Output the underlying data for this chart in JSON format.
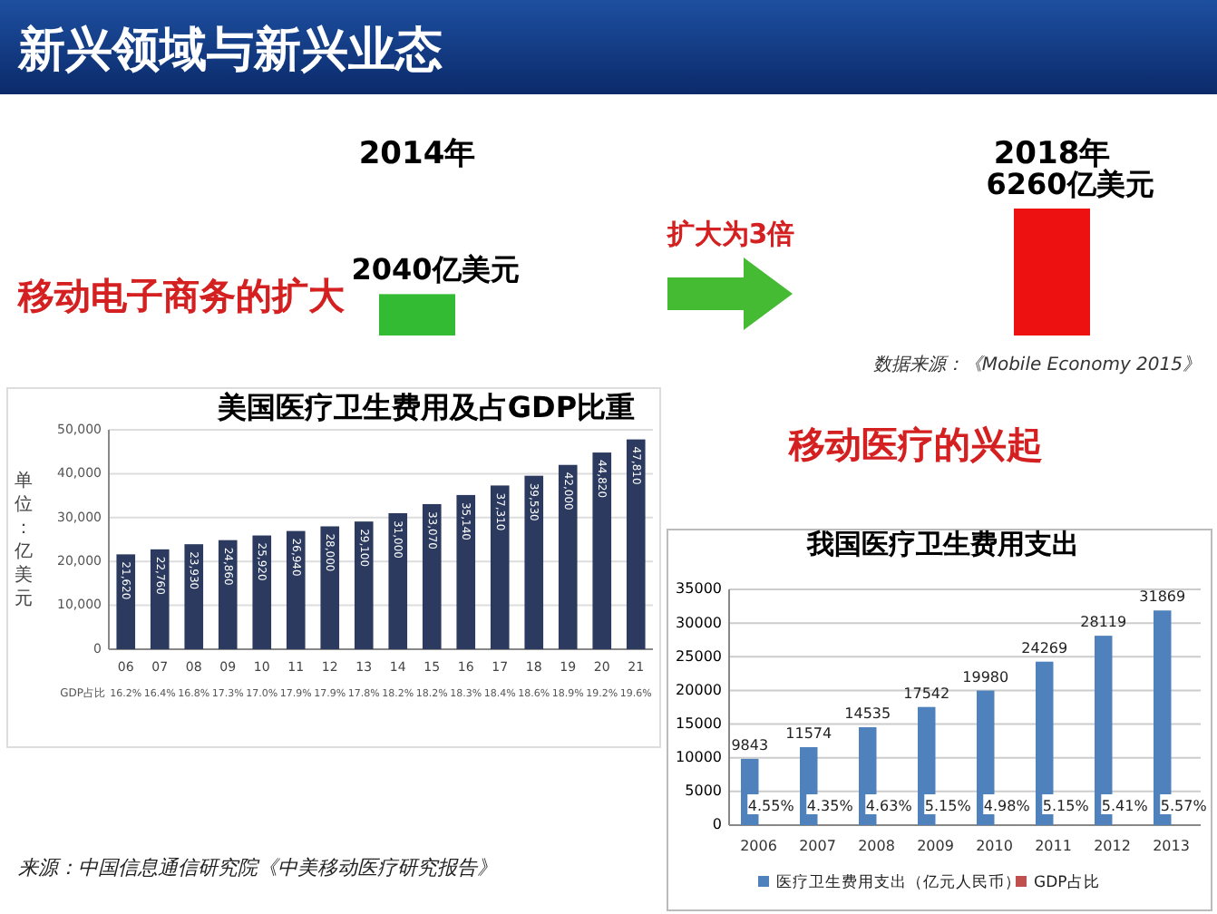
{
  "chart_data": [
    {
      "type": "other",
      "title": "新兴领域与新兴业态"
    },
    {
      "type": "bar",
      "title": "移动电子商务的扩大",
      "categories": [
        "2014年",
        "2018年"
      ],
      "values": [
        2040,
        6260
      ],
      "colors": [
        "#33bb33",
        "#ee1111"
      ],
      "value_labels": [
        "2040亿美元",
        "6260亿美元"
      ],
      "annotations": [
        "扩大为3倍",
        "数据来源：《Mobile Economy 2015》"
      ]
    },
    {
      "type": "bar",
      "title": "美国医疗卫生费用及占GDP比重",
      "ylabel": "单位：亿美元",
      "categories": [
        "06",
        "07",
        "08",
        "09",
        "10",
        "11",
        "12",
        "13",
        "14",
        "15",
        "16",
        "17",
        "18",
        "19",
        "20",
        "21"
      ],
      "ylim": [
        0,
        50000
      ],
      "yticks": [
        {
          "value": 0,
          "label": "0"
        },
        {
          "value": 10000,
          "label": "10,000"
        },
        {
          "value": 20000,
          "label": "20,000"
        },
        {
          "value": 30000,
          "label": "30,000"
        },
        {
          "value": 40000,
          "label": "40,000"
        },
        {
          "value": 50000,
          "label": "50,000"
        }
      ],
      "grid": "y",
      "color": "#2b3a5e",
      "values": [
        21620,
        22760,
        23930,
        24860,
        25920,
        26940,
        28000,
        29100,
        31000,
        33070,
        35140,
        37310,
        39530,
        42000,
        44820,
        47810
      ],
      "value_labels": [
        "21,620",
        "22,760",
        "23,930",
        "24,860",
        "25,920",
        "26,940",
        "28,000",
        "29,100",
        "31,000",
        "33,070",
        "35,140",
        "37,310",
        "39,530",
        "42,000",
        "44,820",
        "47,810"
      ],
      "annotations": [
        "GDP占比",
        "16.2%",
        "16.4%",
        "16.8%",
        "17.3%",
        "17.0%",
        "17.9%",
        "17.9%",
        "17.8%",
        "18.2%",
        "18.2%",
        "18.3%",
        "18.4%",
        "18.6%",
        "18.9%",
        "19.2%",
        "19.6%",
        "来源：中国信息通信研究院《中美移动医疗研究报告》"
      ]
    },
    {
      "type": "other",
      "title": "移动医疗的兴起"
    },
    {
      "type": "bar",
      "title": "我国医疗卫生费用支出",
      "categories": [
        "2006",
        "2007",
        "2008",
        "2009",
        "2010",
        "2011",
        "2012",
        "2013"
      ],
      "ylim": [
        0,
        35000
      ],
      "yticks": [
        0,
        5000,
        10000,
        15000,
        20000,
        25000,
        30000,
        35000
      ],
      "grid": "y",
      "legend": "bottom",
      "series": [
        {
          "name": "医疗卫生费用支出（亿元人民币）",
          "color": "#4f81bd",
          "values": [
            9843,
            11574,
            14535,
            17542,
            19980,
            24269,
            28119,
            31869
          ],
          "value_labels": [
            "9843",
            "11574",
            "14535",
            "17542",
            "19980",
            "24269",
            "28119",
            "31869"
          ]
        },
        {
          "name": "GDP占比",
          "color": "#c0504d",
          "values": [
            4.55,
            4.35,
            4.63,
            5.15,
            4.98,
            5.15,
            5.41,
            5.57
          ],
          "value_labels": [
            "4.55%",
            "4.35%",
            "4.63%",
            "5.15%",
            "4.98%",
            "5.15%",
            "5.41%",
            "5.57%"
          ]
        }
      ]
    }
  ]
}
